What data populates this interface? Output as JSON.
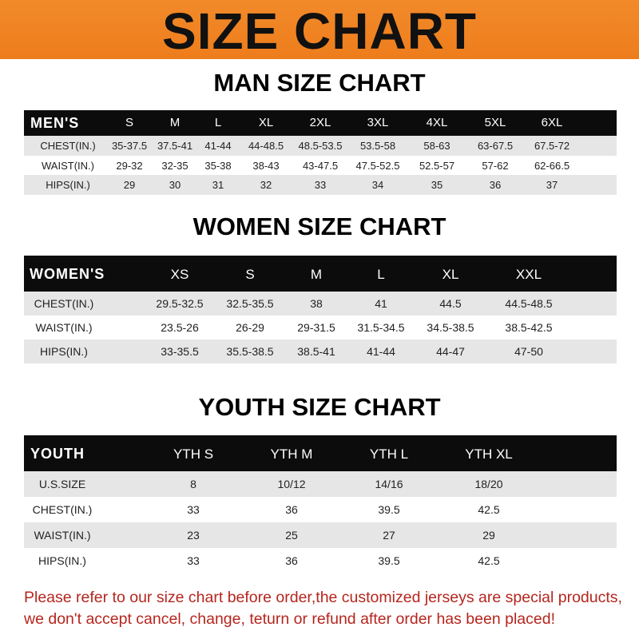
{
  "banner_title": "SIZE CHART",
  "men": {
    "title": "MAN SIZE CHART",
    "header": [
      "MEN'S",
      "S",
      "M",
      "L",
      "XL",
      "2XL",
      "3XL",
      "4XL",
      "5XL",
      "6XL"
    ],
    "rows": [
      [
        "CHEST(IN.)",
        "35-37.5",
        "37.5-41",
        "41-44",
        "44-48.5",
        "48.5-53.5",
        "53.5-58",
        "58-63",
        "63-67.5",
        "67.5-72"
      ],
      [
        "WAIST(IN.)",
        "29-32",
        "32-35",
        "35-38",
        "38-43",
        "43-47.5",
        "47.5-52.5",
        "52.5-57",
        "57-62",
        "62-66.5"
      ],
      [
        "HIPS(IN.)",
        "29",
        "30",
        "31",
        "32",
        "33",
        "34",
        "35",
        "36",
        "37"
      ]
    ]
  },
  "women": {
    "title": "WOMEN SIZE CHART",
    "header": [
      "WOMEN'S",
      "XS",
      "S",
      "M",
      "L",
      "XL",
      "XXL"
    ],
    "rows": [
      [
        "CHEST(IN.)",
        "29.5-32.5",
        "32.5-35.5",
        "38",
        "41",
        "44.5",
        "44.5-48.5"
      ],
      [
        "WAIST(IN.)",
        "23.5-26",
        "26-29",
        "29-31.5",
        "31.5-34.5",
        "34.5-38.5",
        "38.5-42.5"
      ],
      [
        "HIPS(IN.)",
        "33-35.5",
        "35.5-38.5",
        "38.5-41",
        "41-44",
        "44-47",
        "47-50"
      ]
    ]
  },
  "youth": {
    "title": "YOUTH SIZE CHART",
    "header": [
      "YOUTH",
      "YTH S",
      "YTH M",
      "YTH L",
      "YTH XL"
    ],
    "rows": [
      [
        "U.S.SIZE",
        "8",
        "10/12",
        "14/16",
        "18/20"
      ],
      [
        "CHEST(IN.)",
        "33",
        "36",
        "39.5",
        "42.5"
      ],
      [
        "WAIST(IN.)",
        "23",
        "25",
        "27",
        "29"
      ],
      [
        "HIPS(IN.)",
        "33",
        "36",
        "39.5",
        "42.5"
      ]
    ]
  },
  "note": {
    "line1": "Please refer to our size chart before order,the customized jerseys are special products,",
    "line2": "we don't accept cancel, change, teturn or refund after order has been placed!"
  },
  "colors": {
    "banner": "#ef8120",
    "header_bg": "#0c0c0c",
    "stripe": "#e6e6e6",
    "note": "#b5261e"
  }
}
